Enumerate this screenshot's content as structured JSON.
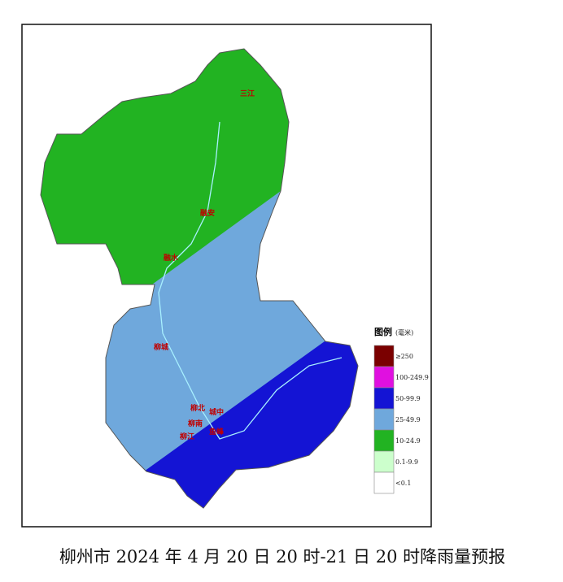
{
  "map": {
    "places": [
      "三江",
      "融安",
      "融水",
      "柳城",
      "柳北",
      "城中",
      "柳南",
      "柳江",
      "鱼峰"
    ],
    "legend": {
      "title": "图例",
      "unit": "(毫米)",
      "items": [
        {
          "label": "≥250",
          "color": "#7a0000"
        },
        {
          "label": "100-249.9",
          "color": "#e010e0"
        },
        {
          "label": "50-99.9",
          "color": "#1414d4"
        },
        {
          "label": "25-49.9",
          "color": "#6fa8dc"
        },
        {
          "label": "10-24.9",
          "color": "#22b322"
        },
        {
          "label": "0.1-9.9",
          "color": "#ccffcc"
        },
        {
          "label": "<0.1",
          "color": "#ffffff"
        }
      ]
    },
    "caption": "柳州市 2024 年 4 月 20 日 20 时-21 日 20 时降雨量预报"
  }
}
